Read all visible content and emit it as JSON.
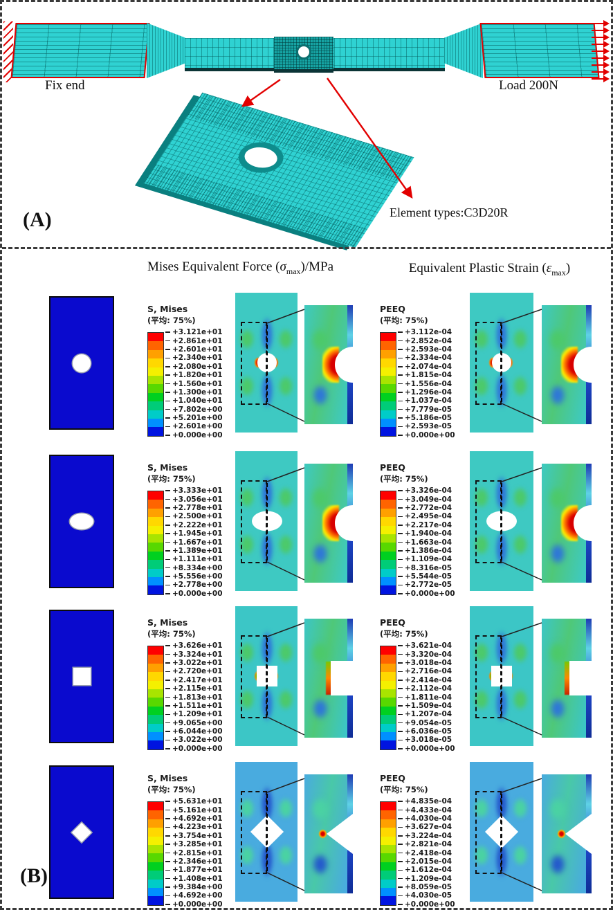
{
  "panel_a": {
    "label": "(A)",
    "fix_end": "Fix end",
    "load": "Load 200N",
    "element_type": "Element types:C3D20R"
  },
  "panel_b": {
    "label": "(B)",
    "col1": {
      "pre": "Mises Equivalent Force (",
      "sym": "σ",
      "sub": "max",
      "post": ")/MPa"
    },
    "col2": {
      "pre": "Equivalent Plastic Strain (",
      "sym": "ε",
      "sub": "max",
      "post": ")"
    }
  },
  "legend_band_colors": [
    "#ff0000",
    "#ff6400",
    "#ffa000",
    "#ffd800",
    "#f4f000",
    "#a8e400",
    "#58d800",
    "#00d020",
    "#00cc78",
    "#00ccc8",
    "#0090ff",
    "#0014e0"
  ],
  "colors": {
    "specimen_blue": "#0a0ace",
    "mesh_cyan": "#2fd2d2",
    "border_red": "#e20000"
  },
  "rows": [
    {
      "hole_shape": "circle",
      "mises": {
        "title": "S, Mises",
        "subtitle": "(平均: 75%)",
        "values": [
          "+3.121e+01",
          "+2.861e+01",
          "+2.601e+01",
          "+2.340e+01",
          "+2.080e+01",
          "+1.820e+01",
          "+1.560e+01",
          "+1.300e+01",
          "+1.040e+01",
          "+7.802e+00",
          "+5.201e+00",
          "+2.601e+00",
          "+0.000e+00"
        ]
      },
      "peeq": {
        "title": "PEEQ",
        "subtitle": "(平均: 75%)",
        "values": [
          "+3.112e-04",
          "+2.852e-04",
          "+2.593e-04",
          "+2.334e-04",
          "+2.074e-04",
          "+1.815e-04",
          "+1.556e-04",
          "+1.296e-04",
          "+1.037e-04",
          "+7.779e-05",
          "+5.186e-05",
          "+2.593e-05",
          "+0.000e+00"
        ]
      },
      "viz": {
        "plot_base": "#3ec9c2",
        "lobe_blue": "#2e76d8",
        "lobe_green": "#4cc96a",
        "hot": "#e22000",
        "detail_mid": "#4fc878"
      }
    },
    {
      "hole_shape": "ellipse",
      "mises": {
        "title": "S, Mises",
        "subtitle": "(平均: 75%)",
        "values": [
          "+3.333e+01",
          "+3.056e+01",
          "+2.778e+01",
          "+2.500e+01",
          "+2.222e+01",
          "+1.945e+01",
          "+1.667e+01",
          "+1.389e+01",
          "+1.111e+01",
          "+8.334e+00",
          "+5.556e+00",
          "+2.778e+00",
          "+0.000e+00"
        ]
      },
      "peeq": {
        "title": "PEEQ",
        "subtitle": "(平均: 75%)",
        "values": [
          "+3.326e-04",
          "+3.049e-04",
          "+2.772e-04",
          "+2.495e-04",
          "+2.217e-04",
          "+1.940e-04",
          "+1.663e-04",
          "+1.386e-04",
          "+1.109e-04",
          "+8.316e-05",
          "+5.544e-05",
          "+2.772e-05",
          "+0.000e+00"
        ]
      },
      "viz": {
        "plot_base": "#3ec9c2",
        "lobe_blue": "#2e76d8",
        "lobe_green": "#4cc96a",
        "hot": "#e22000",
        "detail_mid": "#4fc878"
      }
    },
    {
      "hole_shape": "square",
      "mises": {
        "title": "S, Mises",
        "subtitle": "(平均: 75%)",
        "values": [
          "+3.626e+01",
          "+3.324e+01",
          "+3.022e+01",
          "+2.720e+01",
          "+2.417e+01",
          "+2.115e+01",
          "+1.813e+01",
          "+1.511e+01",
          "+1.209e+01",
          "+9.065e+00",
          "+6.044e+00",
          "+3.022e+00",
          "+0.000e+00"
        ]
      },
      "peeq": {
        "title": "PEEQ",
        "subtitle": "(平均: 75%)",
        "values": [
          "+3.621e-04",
          "+3.320e-04",
          "+3.018e-04",
          "+2.716e-04",
          "+2.414e-04",
          "+2.112e-04",
          "+1.811e-04",
          "+1.509e-04",
          "+1.207e-04",
          "+9.054e-05",
          "+6.036e-05",
          "+3.018e-05",
          "+0.000e+00"
        ]
      },
      "viz": {
        "plot_base": "#3cc6c6",
        "lobe_blue": "#2e76d8",
        "lobe_green": "#4cc96a",
        "hot": "#58c800",
        "detail_mid": "#4fc878"
      }
    },
    {
      "hole_shape": "diamond",
      "mises": {
        "title": "S, Mises",
        "subtitle": "(平均: 75%)",
        "values": [
          "+5.631e+01",
          "+5.161e+01",
          "+4.692e+01",
          "+4.223e+01",
          "+3.754e+01",
          "+3.285e+01",
          "+2.815e+01",
          "+2.346e+01",
          "+1.877e+01",
          "+1.408e+01",
          "+9.384e+00",
          "+4.692e+00",
          "+0.000e+00"
        ]
      },
      "peeq": {
        "title": "PEEQ",
        "subtitle": "(平均: 75%)",
        "values": [
          "+4.835e-04",
          "+4.433e-04",
          "+4.030e-04",
          "+3.627e-04",
          "+3.224e-04",
          "+2.821e-04",
          "+2.418e-04",
          "+2.015e-04",
          "+1.612e-04",
          "+1.209e-04",
          "+8.059e-05",
          "+4.030e-05",
          "+0.000e+00"
        ]
      },
      "viz": {
        "plot_base": "#49abdf",
        "lobe_blue": "#2458cc",
        "lobe_green": "#4ad2a2",
        "hot": "#c8d400",
        "detail_mid": "#49c8a8"
      }
    }
  ]
}
